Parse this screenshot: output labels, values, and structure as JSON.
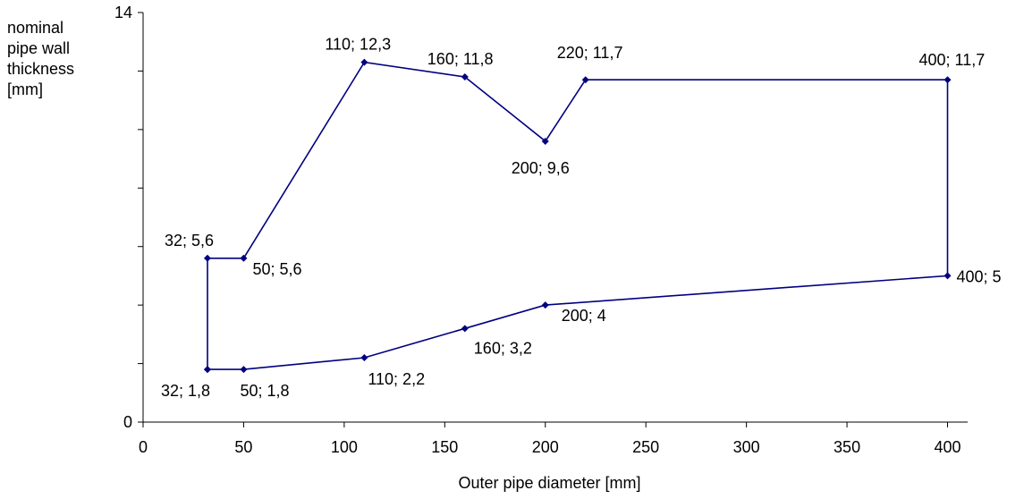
{
  "chart_data": {
    "type": "line",
    "title": "",
    "xlabel": "Outer pipe diameter [mm]",
    "ylabel_lines": [
      "nominal",
      "pipe wall",
      "thickness",
      "[mm]"
    ],
    "xlim": [
      0,
      410
    ],
    "ylim": [
      0,
      14
    ],
    "x_ticks": [
      "0",
      "50",
      "100",
      "150",
      "200",
      "250",
      "300",
      "350",
      "400"
    ],
    "y_tick_labels": [
      {
        "value": 0,
        "label": "0"
      },
      {
        "value": 14,
        "label": "14"
      }
    ],
    "grid": false,
    "legend": "none",
    "line_color": "#000080",
    "series": [
      {
        "points": [
          {
            "x": 32,
            "y": 1.8,
            "label": "32; 1,8"
          },
          {
            "x": 32,
            "y": 5.6,
            "label": "32; 5,6"
          },
          {
            "x": 50,
            "y": 5.6,
            "label": "50; 5,6"
          },
          {
            "x": 110,
            "y": 12.3,
            "label": "110; 12,3"
          },
          {
            "x": 160,
            "y": 11.8,
            "label": "160; 11,8"
          },
          {
            "x": 200,
            "y": 9.6,
            "label": "200; 9,6"
          },
          {
            "x": 220,
            "y": 11.7,
            "label": "220; 11,7"
          },
          {
            "x": 400,
            "y": 11.7,
            "label": "400; 11,7"
          },
          {
            "x": 400,
            "y": 5,
            "label": "400; 5"
          },
          {
            "x": 200,
            "y": 4,
            "label": "200; 4"
          },
          {
            "x": 160,
            "y": 3.2,
            "label": "160; 3,2"
          },
          {
            "x": 110,
            "y": 2.2,
            "label": "110; 2,2"
          },
          {
            "x": 50,
            "y": 1.8,
            "label": "50; 1,8"
          },
          {
            "x": 32,
            "y": 1.8,
            "label": ""
          }
        ]
      }
    ]
  }
}
